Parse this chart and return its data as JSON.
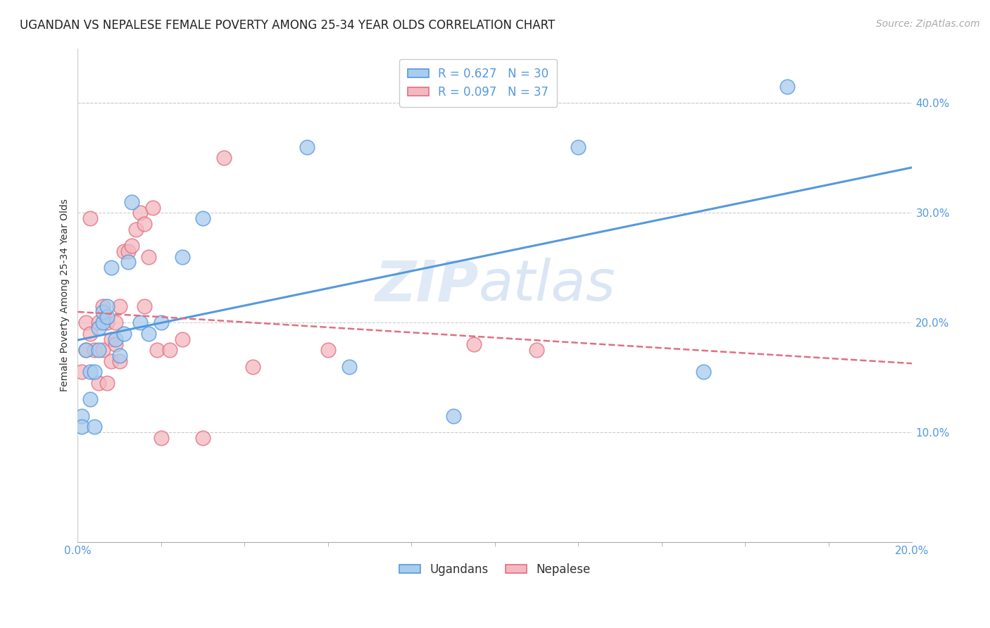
{
  "title": "UGANDAN VS NEPALESE FEMALE POVERTY AMONG 25-34 YEAR OLDS CORRELATION CHART",
  "source": "Source: ZipAtlas.com",
  "ylabel": "Female Poverty Among 25-34 Year Olds",
  "xlim": [
    0,
    0.2
  ],
  "ylim": [
    0,
    0.45
  ],
  "xtick_major": [
    0.0,
    0.2
  ],
  "xtick_minor_step": 0.02,
  "yticks_right": [
    0.1,
    0.2,
    0.3,
    0.4
  ],
  "ugandan_x": [
    0.001,
    0.001,
    0.002,
    0.003,
    0.003,
    0.004,
    0.004,
    0.005,
    0.005,
    0.006,
    0.006,
    0.007,
    0.007,
    0.008,
    0.009,
    0.01,
    0.011,
    0.012,
    0.013,
    0.015,
    0.017,
    0.02,
    0.025,
    0.03,
    0.055,
    0.065,
    0.09,
    0.12,
    0.15,
    0.17
  ],
  "ugandan_y": [
    0.115,
    0.105,
    0.175,
    0.13,
    0.155,
    0.105,
    0.155,
    0.175,
    0.195,
    0.2,
    0.21,
    0.205,
    0.215,
    0.25,
    0.185,
    0.17,
    0.19,
    0.255,
    0.31,
    0.2,
    0.19,
    0.2,
    0.26,
    0.295,
    0.36,
    0.16,
    0.115,
    0.36,
    0.155,
    0.415
  ],
  "nepalese_x": [
    0.001,
    0.002,
    0.002,
    0.003,
    0.003,
    0.004,
    0.005,
    0.005,
    0.006,
    0.006,
    0.007,
    0.007,
    0.008,
    0.008,
    0.009,
    0.009,
    0.01,
    0.01,
    0.011,
    0.012,
    0.013,
    0.014,
    0.015,
    0.016,
    0.016,
    0.017,
    0.018,
    0.019,
    0.02,
    0.022,
    0.025,
    0.03,
    0.035,
    0.042,
    0.06,
    0.095,
    0.11
  ],
  "nepalese_y": [
    0.155,
    0.175,
    0.2,
    0.295,
    0.19,
    0.175,
    0.2,
    0.145,
    0.215,
    0.175,
    0.2,
    0.145,
    0.185,
    0.165,
    0.2,
    0.18,
    0.165,
    0.215,
    0.265,
    0.265,
    0.27,
    0.285,
    0.3,
    0.215,
    0.29,
    0.26,
    0.305,
    0.175,
    0.095,
    0.175,
    0.185,
    0.095,
    0.35,
    0.16,
    0.175,
    0.18,
    0.175
  ],
  "ugandan_color": "#aaccee",
  "nepalese_color": "#f4b8c0",
  "ugandan_line_color": "#5599dd",
  "nepalese_line_color": "#e07080",
  "R_ugandan": 0.627,
  "N_ugandan": 30,
  "R_nepalese": 0.097,
  "N_nepalese": 37,
  "watermark_zip": "ZIP",
  "watermark_atlas": "atlas",
  "background_color": "#ffffff",
  "grid_color": "#cccccc",
  "title_fontsize": 12,
  "axis_label_fontsize": 10,
  "tick_fontsize": 11,
  "legend_fontsize": 12,
  "source_fontsize": 10
}
